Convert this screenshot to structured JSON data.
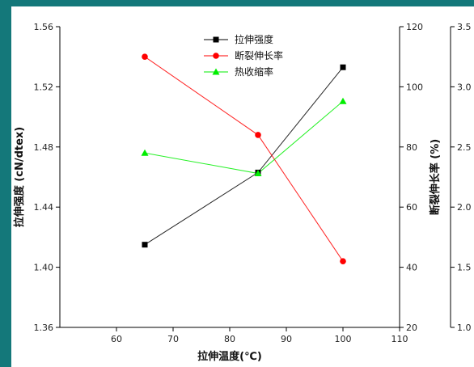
{
  "chart_data": {
    "type": "line",
    "title": "",
    "xlabel": "拉伸温度(℃)",
    "x": [
      65,
      85,
      100
    ],
    "xlim": [
      50,
      110
    ],
    "xticks": [
      60,
      70,
      80,
      90,
      100,
      110
    ],
    "y_left": {
      "label": "拉伸强度 (cN/dtex)",
      "lim": [
        1.36,
        1.56
      ],
      "ticks": [
        "1.36",
        "1.40",
        "1.44",
        "1.48",
        "1.52",
        "1.56"
      ]
    },
    "y_right": {
      "label": "断裂伸长率 (%)",
      "lim": [
        20,
        120
      ],
      "ticks": [
        "20",
        "40",
        "60",
        "80",
        "100",
        "120"
      ]
    },
    "y_right2": {
      "lim": [
        1.0,
        3.5
      ],
      "ticks": [
        "1.0",
        "1.5",
        "2.0",
        "2.5",
        "3.0",
        "3.5"
      ]
    },
    "series": [
      {
        "name": "拉伸强度",
        "axis": "left",
        "color": "#000000",
        "marker": "square",
        "values": [
          1.415,
          1.463,
          1.533
        ]
      },
      {
        "name": "断裂伸长率",
        "axis": "right",
        "color": "#ff0000",
        "marker": "circle",
        "values": [
          110,
          84,
          42
        ]
      },
      {
        "name": "热收缩率",
        "axis": "right2",
        "color": "#00ee00",
        "marker": "triangle",
        "values": [
          2.45,
          2.28,
          2.88
        ]
      }
    ],
    "legend": "top-center",
    "grid": false
  }
}
